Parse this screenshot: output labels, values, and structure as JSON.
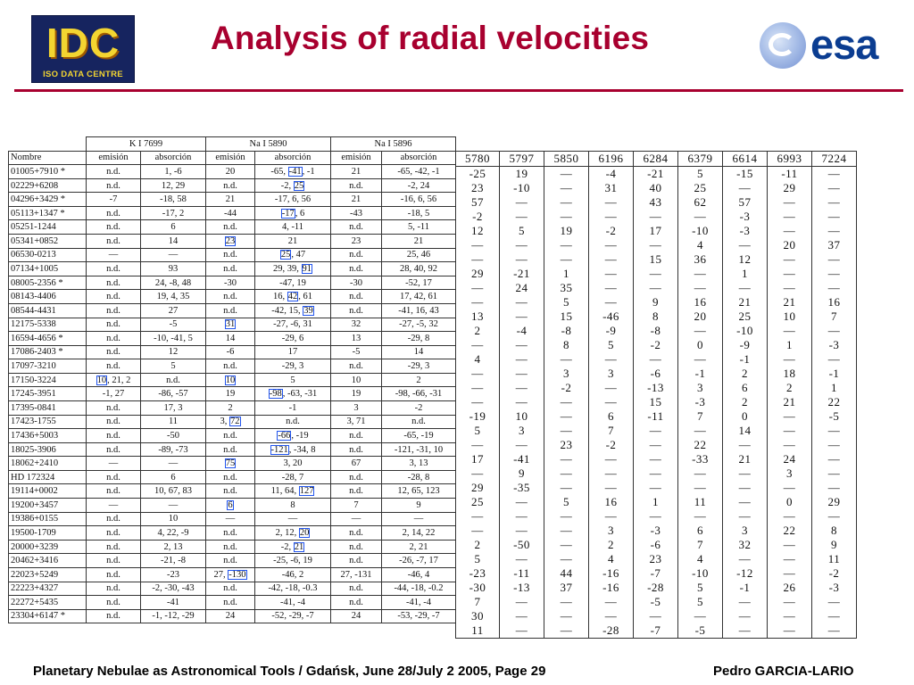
{
  "header": {
    "title": "Analysis of radial velocities",
    "logo_left_big": "IDC",
    "logo_left_small": "ISO DATA CENTRE",
    "logo_right_text": "esa"
  },
  "colors": {
    "title": "#a8002f",
    "divider": "#a8002f",
    "highlight_box": "#2255ee",
    "esa_blue": "#0b3d91",
    "idc_bg": "#16245f",
    "idc_text": "#f3d531"
  },
  "table": {
    "group_headers": [
      "K I 7699",
      "Na I 5890",
      "Na I 5896"
    ],
    "sub_headers": [
      "Nombre",
      "emisión",
      "absorción",
      "emisión",
      "absorción",
      "emisión",
      "absorción"
    ],
    "rows": [
      [
        "01005+7910 *",
        "n.d.",
        "1, -6",
        "20",
        "-65, -41, -1",
        "21",
        "-65, -42, -1"
      ],
      [
        "02229+6208",
        "n.d.",
        "12, 29",
        "n.d.",
        "-2, 25",
        "n.d.",
        "-2, 24"
      ],
      [
        "04296+3429 *",
        "-7",
        "-18, 58",
        "21",
        "-17, 6, 56",
        "21",
        "-16, 6, 56"
      ],
      [
        "05113+1347 *",
        "n.d.",
        "-17, 2",
        "-44",
        "-17, 6",
        "-43",
        "-18, 5"
      ],
      [
        "05251-1244",
        "n.d.",
        "6",
        "n.d.",
        "4, -11",
        "n.d.",
        "5, -11"
      ],
      [
        "05341+0852",
        "n.d.",
        "14",
        "23",
        "21",
        "23",
        "21"
      ],
      [
        "06530-0213",
        "—",
        "—",
        "n.d.",
        "25, 47",
        "n.d.",
        "25, 46"
      ],
      [
        "07134+1005",
        "n.d.",
        "93",
        "n.d.",
        "29, 39, 91",
        "n.d.",
        "28, 40, 92"
      ],
      [
        "08005-2356 *",
        "n.d.",
        "24, -8, 48",
        "-30",
        "-47, 19",
        "-30",
        "-52, 17"
      ],
      [
        "08143-4406",
        "n.d.",
        "19, 4, 35",
        "n.d.",
        "16, 42, 61",
        "n.d.",
        "17, 42, 61"
      ],
      [
        "08544-4431",
        "n.d.",
        "27",
        "n.d.",
        "-42, 15, 39",
        "n.d.",
        "-41, 16, 43"
      ],
      [
        "12175-5338",
        "n.d.",
        "-5",
        "31",
        "-27, -6, 31",
        "32",
        "-27, -5, 32"
      ],
      [
        "16594-4656 *",
        "n.d.",
        "-10, -41, 5",
        "14",
        "-29, 6",
        "13",
        "-29, 8"
      ],
      [
        "17086-2403 *",
        "n.d.",
        "12",
        "-6",
        "17",
        "-5",
        "14"
      ],
      [
        "17097-3210",
        "n.d.",
        "5",
        "n.d.",
        "-29, 3",
        "n.d.",
        "-29, 3"
      ],
      [
        "17150-3224",
        "10, 21, 2",
        "n.d.",
        "10",
        "5",
        "10",
        "2"
      ],
      [
        "17245-3951",
        "-1, 27",
        "-86, -57",
        "19",
        "-98, -63, -31",
        "19",
        "-98, -66, -31"
      ],
      [
        "17395-0841",
        "n.d.",
        "17, 3",
        "2",
        "-1",
        "3",
        "-2"
      ],
      [
        "17423-1755",
        "n.d.",
        "11",
        "3, 72",
        "n.d.",
        "3, 71",
        "n.d."
      ],
      [
        "17436+5003",
        "n.d.",
        "-50",
        "n.d.",
        "-66, -19",
        "n.d.",
        "-65, -19"
      ],
      [
        "18025-3906",
        "n.d.",
        "-89, -73",
        "n.d.",
        "-121, -34, 8",
        "n.d.",
        "-121, -31, 10"
      ],
      [
        "18062+2410",
        "—",
        "—",
        "75",
        "3, 20",
        "67",
        "3, 13"
      ],
      [
        "HD 172324",
        "n.d.",
        "6",
        "n.d.",
        "-28, 7",
        "n.d.",
        "-28, 8"
      ],
      [
        "19114+0002",
        "n.d.",
        "10, 67, 83",
        "n.d.",
        "11, 64, 127",
        "n.d.",
        "12, 65, 123"
      ],
      [
        "19200+3457",
        "—",
        "—",
        "6",
        "8",
        "7",
        "9"
      ],
      [
        "19386+0155",
        "n.d.",
        "10",
        "—",
        "—",
        "—",
        "—"
      ],
      [
        "19500-1709",
        "n.d.",
        "4, 22, -9",
        "n.d.",
        "2, 12, 20",
        "n.d.",
        "2, 14, 22"
      ],
      [
        "20000+3239",
        "n.d.",
        "2, 13",
        "n.d.",
        "-2, 21",
        "n.d.",
        "2, 21"
      ],
      [
        "20462+3416",
        "n.d.",
        "-21, -8",
        "n.d.",
        "-25, -6, 19",
        "n.d.",
        "-26, -7, 17"
      ],
      [
        "22023+5249",
        "n.d.",
        "-23",
        "27, -130",
        "-46, 2",
        "27, -131",
        "-46, 4"
      ],
      [
        "22223+4327",
        "n.d.",
        "-2, -30, -43",
        "n.d.",
        "-42, -18, -0.3",
        "n.d.",
        "-44, -18, -0.2"
      ],
      [
        "22272+5435",
        "n.d.",
        "-41",
        "n.d.",
        "-41, -4",
        "n.d.",
        "-41, -4"
      ],
      [
        "23304+6147 *",
        "n.d.",
        "-1, -12, -29",
        "24",
        "-52, -29, -7",
        "24",
        "-53, -29, -7"
      ]
    ],
    "highlights": [
      {
        "row": 0,
        "col": 4,
        "token": 1
      },
      {
        "row": 1,
        "col": 4,
        "token": 1
      },
      {
        "row": 3,
        "col": 4,
        "token": 0
      },
      {
        "row": 5,
        "col": 3,
        "token": 0
      },
      {
        "row": 6,
        "col": 4,
        "token": 0
      },
      {
        "row": 7,
        "col": 4,
        "token": 2
      },
      {
        "row": 9,
        "col": 4,
        "token": 1
      },
      {
        "row": 10,
        "col": 4,
        "token": 2
      },
      {
        "row": 11,
        "col": 3,
        "token": 0
      },
      {
        "row": 15,
        "col": 1,
        "token": 0
      },
      {
        "row": 15,
        "col": 3,
        "token": 0
      },
      {
        "row": 16,
        "col": 4,
        "token": 0
      },
      {
        "row": 18,
        "col": 3,
        "token": 1
      },
      {
        "row": 19,
        "col": 4,
        "token": 0
      },
      {
        "row": 20,
        "col": 4,
        "token": 0
      },
      {
        "row": 21,
        "col": 3,
        "token": 0
      },
      {
        "row": 23,
        "col": 4,
        "token": 2
      },
      {
        "row": 24,
        "col": 3,
        "token": 0
      },
      {
        "row": 26,
        "col": 4,
        "token": 2
      },
      {
        "row": 27,
        "col": 4,
        "token": 1
      },
      {
        "row": 29,
        "col": 3,
        "token": 1
      }
    ],
    "wl_headers": [
      "5780",
      "5797",
      "5850",
      "6196",
      "6284",
      "6379",
      "6614",
      "6993",
      "7224"
    ],
    "wl_rows": [
      [
        "-25",
        "19",
        "—",
        "-4",
        "-21",
        "5",
        "-15",
        "-11",
        "—"
      ],
      [
        "23",
        "-10",
        "—",
        "31",
        "40",
        "25",
        "—",
        "29",
        "—"
      ],
      [
        "57",
        "—",
        "—",
        "—",
        "43",
        "62",
        "57",
        "—",
        "—"
      ],
      [
        "-2",
        "—",
        "—",
        "—",
        "—",
        "—",
        "-3",
        "—",
        "—"
      ],
      [
        "12",
        "5",
        "19",
        "-2",
        "17",
        "-10",
        "-3",
        "—",
        "—"
      ],
      [
        "—",
        "—",
        "—",
        "—",
        "—",
        "4",
        "—",
        "20",
        "37"
      ],
      [
        "—",
        "—",
        "—",
        "—",
        "15",
        "36",
        "12",
        "—",
        "—"
      ],
      [
        "29",
        "-21",
        "1",
        "—",
        "—",
        "—",
        "1",
        "—",
        "—"
      ],
      [
        "—",
        "24",
        "35",
        "—",
        "—",
        "—",
        "—",
        "—",
        "—"
      ],
      [
        "—",
        "—",
        "5",
        "—",
        "9",
        "16",
        "21",
        "21",
        "16"
      ],
      [
        "13",
        "—",
        "15",
        "-46",
        "8",
        "20",
        "25",
        "10",
        "7"
      ],
      [
        "2",
        "-4",
        "-8",
        "-9",
        "-8",
        "—",
        "-10",
        "—",
        "—"
      ],
      [
        "—",
        "—",
        "8",
        "5",
        "-2",
        "0",
        "-9",
        "1",
        "-3"
      ],
      [
        "4",
        "—",
        "—",
        "—",
        "—",
        "—",
        "-1",
        "—",
        "—"
      ],
      [
        "—",
        "—",
        "3",
        "3",
        "-6",
        "-1",
        "2",
        "18",
        "-1"
      ],
      [
        "—",
        "—",
        "-2",
        "—",
        "-13",
        "3",
        "6",
        "2",
        "1"
      ],
      [
        "—",
        "—",
        "—",
        "—",
        "15",
        "-3",
        "2",
        "21",
        "22"
      ],
      [
        "-19",
        "10",
        "—",
        "6",
        "-11",
        "7",
        "0",
        "—",
        "-5"
      ],
      [
        "5",
        "3",
        "—",
        "7",
        "—",
        "—",
        "14",
        "—",
        "—"
      ],
      [
        "—",
        "—",
        "23",
        "-2",
        "—",
        "22",
        "—",
        "—",
        "—"
      ],
      [
        "17",
        "-41",
        "—",
        "—",
        "—",
        "-33",
        "21",
        "24",
        "—"
      ],
      [
        "—",
        "9",
        "—",
        "—",
        "—",
        "—",
        "—",
        "3",
        "—"
      ],
      [
        "29",
        "-35",
        "—",
        "—",
        "—",
        "—",
        "—",
        "—",
        "—"
      ],
      [
        "25",
        "—",
        "5",
        "16",
        "1",
        "11",
        "—",
        "0",
        "29"
      ],
      [
        "—",
        "—",
        "—",
        "—",
        "—",
        "—",
        "—",
        "—",
        "—"
      ],
      [
        "—",
        "—",
        "—",
        "3",
        "-3",
        "6",
        "3",
        "22",
        "8"
      ],
      [
        "2",
        "-50",
        "—",
        "2",
        "-6",
        "7",
        "32",
        "—",
        "9"
      ],
      [
        "5",
        "—",
        "—",
        "4",
        "23",
        "4",
        "—",
        "—",
        "11"
      ],
      [
        "-23",
        "-11",
        "44",
        "-16",
        "-7",
        "-10",
        "-12",
        "—",
        "-2"
      ],
      [
        "-30",
        "-13",
        "37",
        "-16",
        "-28",
        "5",
        "-1",
        "26",
        "-3"
      ],
      [
        "7",
        "—",
        "—",
        "—",
        "-5",
        "5",
        "—",
        "—",
        "—"
      ],
      [
        "30",
        "—",
        "—",
        "—",
        "—",
        "—",
        "—",
        "—",
        "—"
      ],
      [
        "11",
        "—",
        "—",
        "-28",
        "-7",
        "-5",
        "—",
        "—",
        "—"
      ]
    ]
  },
  "footer": {
    "left": "Planetary Nebulae as Astronomical Tools / Gdańsk, June 28/July 2 2005, Page 29",
    "right": "Pedro GARCIA-LARIO"
  }
}
